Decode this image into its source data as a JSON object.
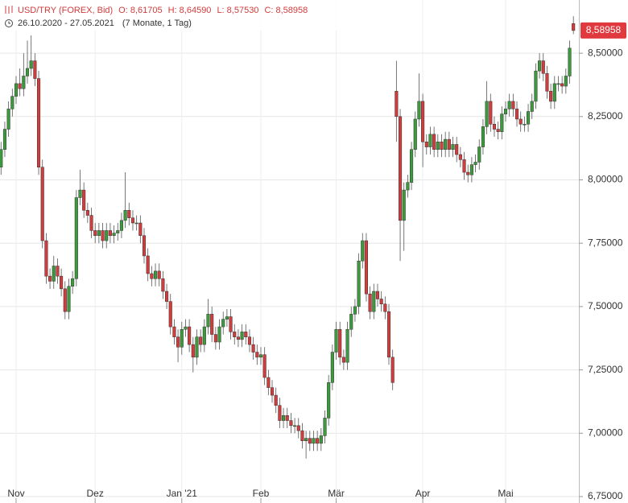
{
  "chart_data": {
    "type": "candlestick",
    "title": "USD/TRY (FOREX, Bid)",
    "quote": [
      "O: 8,61705",
      "H: 8,64590",
      "L: 8,57530",
      "C: 8,58958"
    ],
    "date_range": "26.10.2020 - 27.05.2021",
    "period": "(7 Monate, 1 Tag)",
    "last": {
      "value": 8.58958,
      "label": "8,58958"
    },
    "up_color": "#3c9a3c",
    "down_color": "#d23c3c",
    "last_color": "#e0393e",
    "ylim": [
      6.75,
      8.71
    ],
    "yticks": [
      {
        "value": 6.75,
        "label": "6,75000"
      },
      {
        "value": 7,
        "label": "7,00000"
      },
      {
        "value": 7.25,
        "label": "7,25000"
      },
      {
        "value": 7.5,
        "label": "7,50000"
      },
      {
        "value": 7.75,
        "label": "7,75000"
      },
      {
        "value": 8,
        "label": "8,00000"
      },
      {
        "value": 8.25,
        "label": "8,25000"
      },
      {
        "value": 8.5,
        "label": "8,50000"
      }
    ],
    "grid": true,
    "categories": [
      null,
      null,
      null,
      null,
      null,
      "Nov",
      null,
      null,
      null,
      null,
      null,
      null,
      null,
      null,
      null,
      null,
      null,
      null,
      null,
      null,
      null,
      null,
      null,
      null,
      null,
      null,
      "Dez",
      null,
      null,
      null,
      null,
      null,
      null,
      null,
      null,
      null,
      null,
      null,
      null,
      null,
      null,
      null,
      null,
      null,
      null,
      null,
      null,
      null,
      null,
      "Jan '21",
      null,
      null,
      null,
      null,
      null,
      null,
      null,
      null,
      null,
      null,
      null,
      null,
      null,
      null,
      null,
      null,
      null,
      null,
      null,
      null,
      "Feb",
      null,
      null,
      null,
      null,
      null,
      null,
      null,
      null,
      null,
      null,
      null,
      null,
      null,
      null,
      null,
      null,
      null,
      null,
      null,
      "Mär",
      null,
      null,
      null,
      null,
      null,
      null,
      null,
      null,
      null,
      null,
      null,
      null,
      null,
      null,
      null,
      null,
      null,
      null,
      null,
      null,
      null,
      null,
      "Apr",
      null,
      null,
      null,
      null,
      null,
      null,
      null,
      null,
      null,
      null,
      null,
      null,
      null,
      null,
      null,
      null,
      null,
      null,
      null,
      null,
      null,
      "Mai",
      null,
      null,
      null,
      null,
      null,
      null,
      null,
      null,
      null,
      null,
      null,
      null,
      null,
      null,
      null,
      null,
      null,
      null
    ],
    "open": [
      7.95,
      8.05,
      8.12,
      8.2,
      8.28,
      8.33,
      8.38,
      8.36,
      8.41,
      8.44,
      8.47,
      8.4,
      8.05,
      7.76,
      7.62,
      7.6,
      7.66,
      7.62,
      7.57,
      7.48,
      7.58,
      7.61,
      7.93,
      7.96,
      7.88,
      7.86,
      7.8,
      7.78,
      7.8,
      7.76,
      7.8,
      7.78,
      7.79,
      7.8,
      7.84,
      7.88,
      7.85,
      7.83,
      7.83,
      7.78,
      7.7,
      7.63,
      7.61,
      7.64,
      7.61,
      7.56,
      7.52,
      7.42,
      7.38,
      7.34,
      7.41,
      7.42,
      7.35,
      7.3,
      7.38,
      7.35,
      7.42,
      7.47,
      7.39,
      7.36,
      7.42,
      7.45,
      7.46,
      7.4,
      7.38,
      7.37,
      7.4,
      7.38,
      7.35,
      7.32,
      7.3,
      7.31,
      7.22,
      7.18,
      7.15,
      7.11,
      7.05,
      7.07,
      7.05,
      7.03,
      7.03,
      7.01,
      6.97,
      6.98,
      6.96,
      6.98,
      6.96,
      6.99,
      7.06,
      7.2,
      7.32,
      7.41,
      7.3,
      7.28,
      7.41,
      7.47,
      7.5,
      7.68,
      7.76,
      7.55,
      7.48,
      7.56,
      7.53,
      7.51,
      7.48,
      7.3,
      8.35,
      8.25,
      7.84,
      7.96,
      7.99,
      8.12,
      8.24,
      8.31,
      8.15,
      8.13,
      8.18,
      8.12,
      8.15,
      8.12,
      8.16,
      8.12,
      8.14,
      8.1,
      8.08,
      8.03,
      8.02,
      8.06,
      8.07,
      8.13,
      8.21,
      8.31,
      8.22,
      8.2,
      8.19,
      8.26,
      8.28,
      8.31,
      8.28,
      8.24,
      8.22,
      8.22,
      8.27,
      8.31,
      8.43,
      8.47,
      8.42,
      8.35,
      8.31,
      8.38,
      8.38,
      8.37,
      8.41,
      8.61705
    ],
    "high": [
      8.08,
      8.15,
      8.23,
      8.31,
      8.36,
      8.41,
      8.44,
      8.5,
      8.55,
      8.57,
      8.5,
      8.43,
      8.08,
      7.79,
      7.65,
      7.7,
      7.69,
      7.65,
      7.6,
      7.61,
      7.64,
      7.96,
      8.04,
      7.99,
      7.91,
      7.89,
      7.83,
      7.83,
      7.83,
      7.83,
      7.83,
      7.82,
      7.83,
      7.87,
      8.03,
      7.91,
      7.88,
      7.86,
      7.86,
      7.81,
      7.73,
      7.66,
      7.67,
      7.67,
      7.64,
      7.59,
      7.55,
      7.45,
      7.41,
      7.44,
      7.45,
      7.45,
      7.38,
      7.41,
      7.41,
      7.45,
      7.53,
      7.5,
      7.42,
      7.45,
      7.48,
      7.49,
      7.49,
      7.43,
      7.41,
      7.43,
      7.43,
      7.41,
      7.38,
      7.35,
      7.34,
      7.34,
      7.25,
      7.21,
      7.18,
      7.14,
      7.1,
      7.1,
      7.08,
      7.06,
      7.06,
      7.04,
      7.01,
      7.01,
      7.01,
      7.01,
      7.02,
      7.09,
      7.23,
      7.35,
      7.44,
      7.44,
      7.33,
      7.44,
      7.5,
      7.53,
      7.71,
      7.79,
      7.79,
      7.58,
      7.59,
      7.59,
      7.56,
      7.54,
      7.51,
      7.33,
      8.47,
      8.28,
      7.99,
      8.02,
      8.15,
      8.27,
      8.42,
      8.34,
      8.18,
      8.21,
      8.21,
      8.18,
      8.18,
      8.19,
      8.19,
      8.17,
      8.17,
      8.13,
      8.11,
      8.06,
      8.09,
      8.1,
      8.16,
      8.24,
      8.39,
      8.34,
      8.25,
      8.23,
      8.29,
      8.31,
      8.34,
      8.34,
      8.31,
      8.27,
      8.25,
      8.3,
      8.34,
      8.46,
      8.5,
      8.5,
      8.45,
      8.38,
      8.41,
      8.41,
      8.41,
      8.44,
      8.55,
      8.6459
    ],
    "low": [
      7.92,
      8.02,
      8.09,
      8.17,
      8.25,
      8.3,
      8.33,
      8.33,
      8.38,
      8.41,
      8.37,
      8.02,
      7.73,
      7.59,
      7.57,
      7.57,
      7.59,
      7.54,
      7.45,
      7.45,
      7.55,
      7.58,
      7.9,
      7.85,
      7.83,
      7.77,
      7.75,
      7.75,
      7.73,
      7.73,
      7.75,
      7.75,
      7.76,
      7.77,
      7.81,
      7.82,
      7.8,
      7.8,
      7.75,
      7.67,
      7.6,
      7.58,
      7.58,
      7.58,
      7.53,
      7.49,
      7.39,
      7.35,
      7.28,
      7.31,
      7.38,
      7.32,
      7.24,
      7.27,
      7.32,
      7.32,
      7.39,
      7.36,
      7.33,
      7.33,
      7.39,
      7.42,
      7.37,
      7.35,
      7.34,
      7.34,
      7.35,
      7.32,
      7.29,
      7.27,
      7.27,
      7.19,
      7.15,
      7.12,
      7.08,
      7.02,
      7.02,
      7.02,
      7.0,
      7.0,
      6.98,
      6.94,
      6.9,
      6.93,
      6.93,
      6.93,
      6.93,
      6.96,
      7.03,
      7.17,
      7.29,
      7.27,
      7.25,
      7.25,
      7.38,
      7.44,
      7.47,
      7.65,
      7.52,
      7.45,
      7.45,
      7.5,
      7.48,
      7.45,
      7.27,
      7.17,
      8.15,
      7.68,
      7.72,
      7.93,
      7.96,
      8.09,
      8.21,
      8.05,
      8.1,
      8.1,
      8.09,
      8.09,
      8.09,
      8.09,
      8.09,
      8.09,
      8.07,
      8.05,
      8.0,
      7.99,
      7.99,
      8.03,
      8.04,
      8.1,
      8.18,
      8.19,
      8.17,
      8.16,
      8.16,
      8.23,
      8.25,
      8.25,
      8.21,
      8.19,
      8.19,
      8.19,
      8.24,
      8.28,
      8.4,
      8.39,
      8.32,
      8.28,
      8.28,
      8.35,
      8.34,
      8.34,
      8.38,
      8.5753
    ],
    "close": [
      8.05,
      8.12,
      8.2,
      8.28,
      8.33,
      8.38,
      8.36,
      8.41,
      8.44,
      8.47,
      8.4,
      8.05,
      7.76,
      7.62,
      7.6,
      7.66,
      7.62,
      7.57,
      7.48,
      7.58,
      7.61,
      7.93,
      7.96,
      7.88,
      7.86,
      7.8,
      7.78,
      7.8,
      7.76,
      7.8,
      7.78,
      7.79,
      7.8,
      7.84,
      7.88,
      7.85,
      7.83,
      7.83,
      7.78,
      7.7,
      7.63,
      7.61,
      7.64,
      7.61,
      7.56,
      7.52,
      7.42,
      7.38,
      7.34,
      7.41,
      7.42,
      7.35,
      7.3,
      7.38,
      7.35,
      7.42,
      7.47,
      7.39,
      7.36,
      7.42,
      7.45,
      7.46,
      7.4,
      7.38,
      7.37,
      7.4,
      7.38,
      7.35,
      7.32,
      7.3,
      7.31,
      7.22,
      7.18,
      7.15,
      7.11,
      7.05,
      7.07,
      7.05,
      7.03,
      7.03,
      7.01,
      6.97,
      6.98,
      6.96,
      6.98,
      6.96,
      6.99,
      7.06,
      7.2,
      7.32,
      7.41,
      7.3,
      7.28,
      7.41,
      7.47,
      7.5,
      7.68,
      7.76,
      7.55,
      7.48,
      7.56,
      7.53,
      7.51,
      7.48,
      7.3,
      7.2,
      8.25,
      7.84,
      7.96,
      7.99,
      8.12,
      8.24,
      8.31,
      8.15,
      8.13,
      8.18,
      8.12,
      8.15,
      8.12,
      8.16,
      8.12,
      8.14,
      8.1,
      8.08,
      8.03,
      8.02,
      8.06,
      8.07,
      8.13,
      8.21,
      8.31,
      8.22,
      8.2,
      8.19,
      8.26,
      8.28,
      8.31,
      8.28,
      8.24,
      8.22,
      8.22,
      8.27,
      8.31,
      8.43,
      8.47,
      8.42,
      8.35,
      8.31,
      8.38,
      8.38,
      8.37,
      8.41,
      8.52,
      8.58958
    ]
  }
}
